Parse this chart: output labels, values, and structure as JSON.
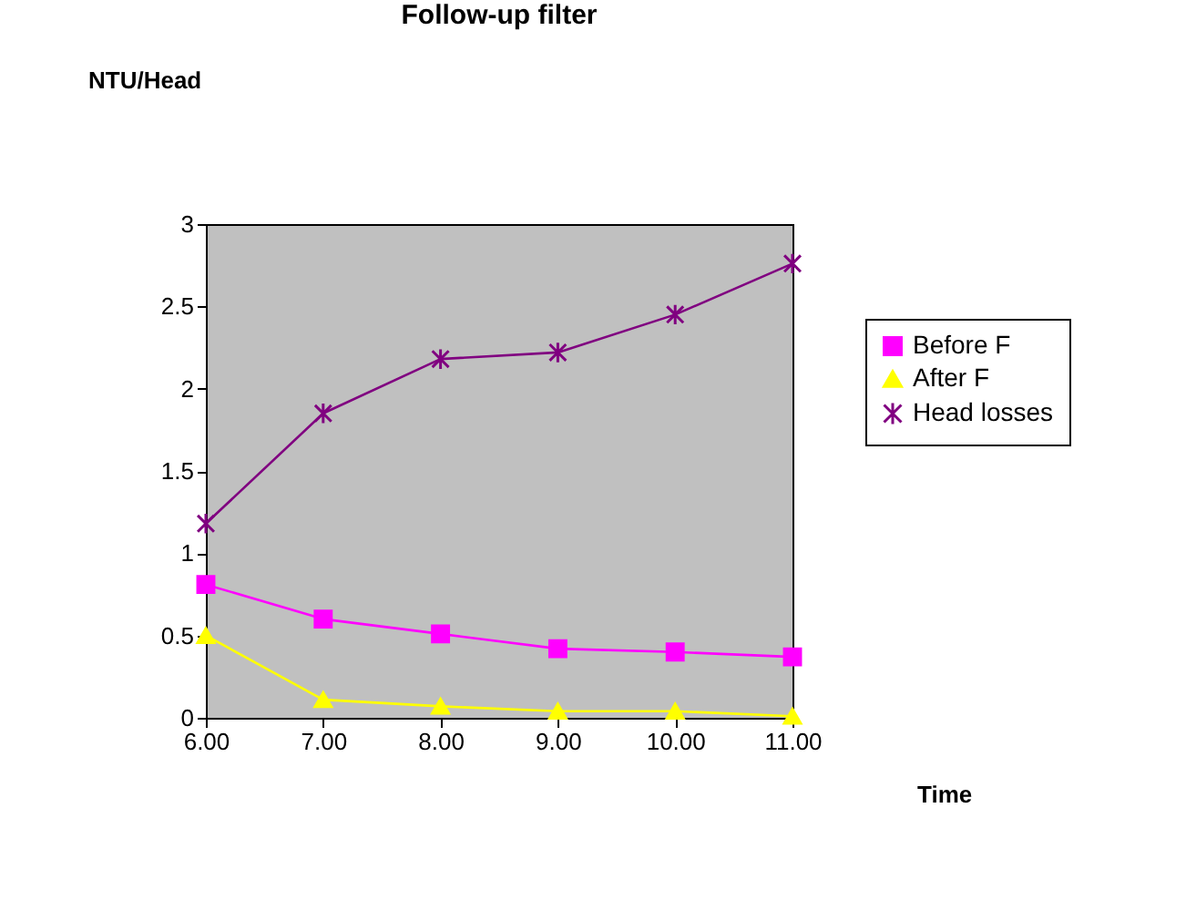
{
  "chart_data": {
    "type": "line",
    "title": "Follow-up filter",
    "xlabel": "Time",
    "ylabel": "NTU/Head",
    "categories": [
      "6.00",
      "7.00",
      "8.00",
      "9.00",
      "10.00",
      "11.00"
    ],
    "series": [
      {
        "name": "Before F",
        "color": "#ff00ff",
        "marker": "square",
        "values": [
          0.81,
          0.6,
          0.51,
          0.42,
          0.4,
          0.37
        ]
      },
      {
        "name": "After F",
        "color": "#ffff00",
        "marker": "triangle",
        "values": [
          0.5,
          0.11,
          0.07,
          0.04,
          0.04,
          0.01
        ]
      },
      {
        "name": "Head losses",
        "color": "#800080",
        "marker": "cross",
        "values": [
          1.18,
          1.85,
          2.18,
          2.22,
          2.45,
          2.76
        ]
      }
    ],
    "ylim": [
      0,
      3
    ],
    "yticks": [
      0,
      0.5,
      1,
      1.5,
      2,
      2.5,
      3
    ],
    "grid": false,
    "legend": "right",
    "line_style": "solid"
  }
}
